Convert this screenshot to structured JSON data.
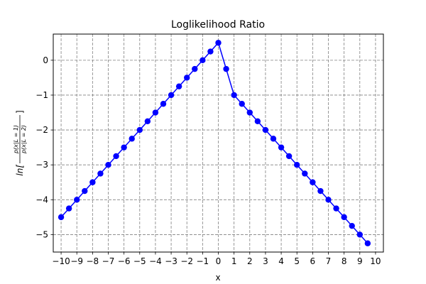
{
  "chart_data": {
    "type": "line",
    "title": "Loglikelihood Ratio",
    "xlabel": "x",
    "ylabel": {
      "prefix": "ln[",
      "numerator": "p(x|L = 1)",
      "denominator": "p(x|L = 2)",
      "suffix": "]"
    },
    "xlim": [
      -10.5,
      10.5
    ],
    "ylim": [
      -5.5,
      0.75
    ],
    "xticks": [
      -10,
      -9,
      -8,
      -7,
      -6,
      -5,
      -4,
      -3,
      -2,
      -1,
      0,
      1,
      2,
      3,
      4,
      5,
      6,
      7,
      8,
      9,
      10
    ],
    "yticks": [
      0,
      -1,
      -2,
      -3,
      -4,
      -5
    ],
    "grid": true,
    "legend": "none",
    "series": [
      {
        "color": "#0000ff",
        "marker": "circle",
        "x": [
          -10,
          -9.5,
          -9,
          -8.5,
          -8,
          -7.5,
          -7,
          -6.5,
          -6,
          -5.5,
          -5,
          -4.5,
          -4,
          -3.5,
          -3,
          -2.5,
          -2,
          -1.5,
          -1,
          -0.5,
          0,
          0.5,
          1,
          1.5,
          2,
          2.5,
          3,
          3.5,
          4,
          4.5,
          5,
          5.5,
          6,
          6.5,
          7,
          7.5,
          8,
          8.5,
          9,
          9.5
        ],
        "y": [
          -4.5,
          -4.25,
          -4.0,
          -3.75,
          -3.5,
          -3.25,
          -3.0,
          -2.75,
          -2.5,
          -2.25,
          -2.0,
          -1.75,
          -1.5,
          -1.25,
          -1.0,
          -0.75,
          -0.5,
          -0.25,
          0.0,
          0.25,
          0.5,
          -0.25,
          -1.0,
          -1.25,
          -1.5,
          -1.75,
          -2.0,
          -2.25,
          -2.5,
          -2.75,
          -3.0,
          -3.25,
          -3.5,
          -3.75,
          -4.0,
          -4.25,
          -4.5,
          -4.75,
          -5.0,
          -5.25
        ]
      }
    ]
  }
}
